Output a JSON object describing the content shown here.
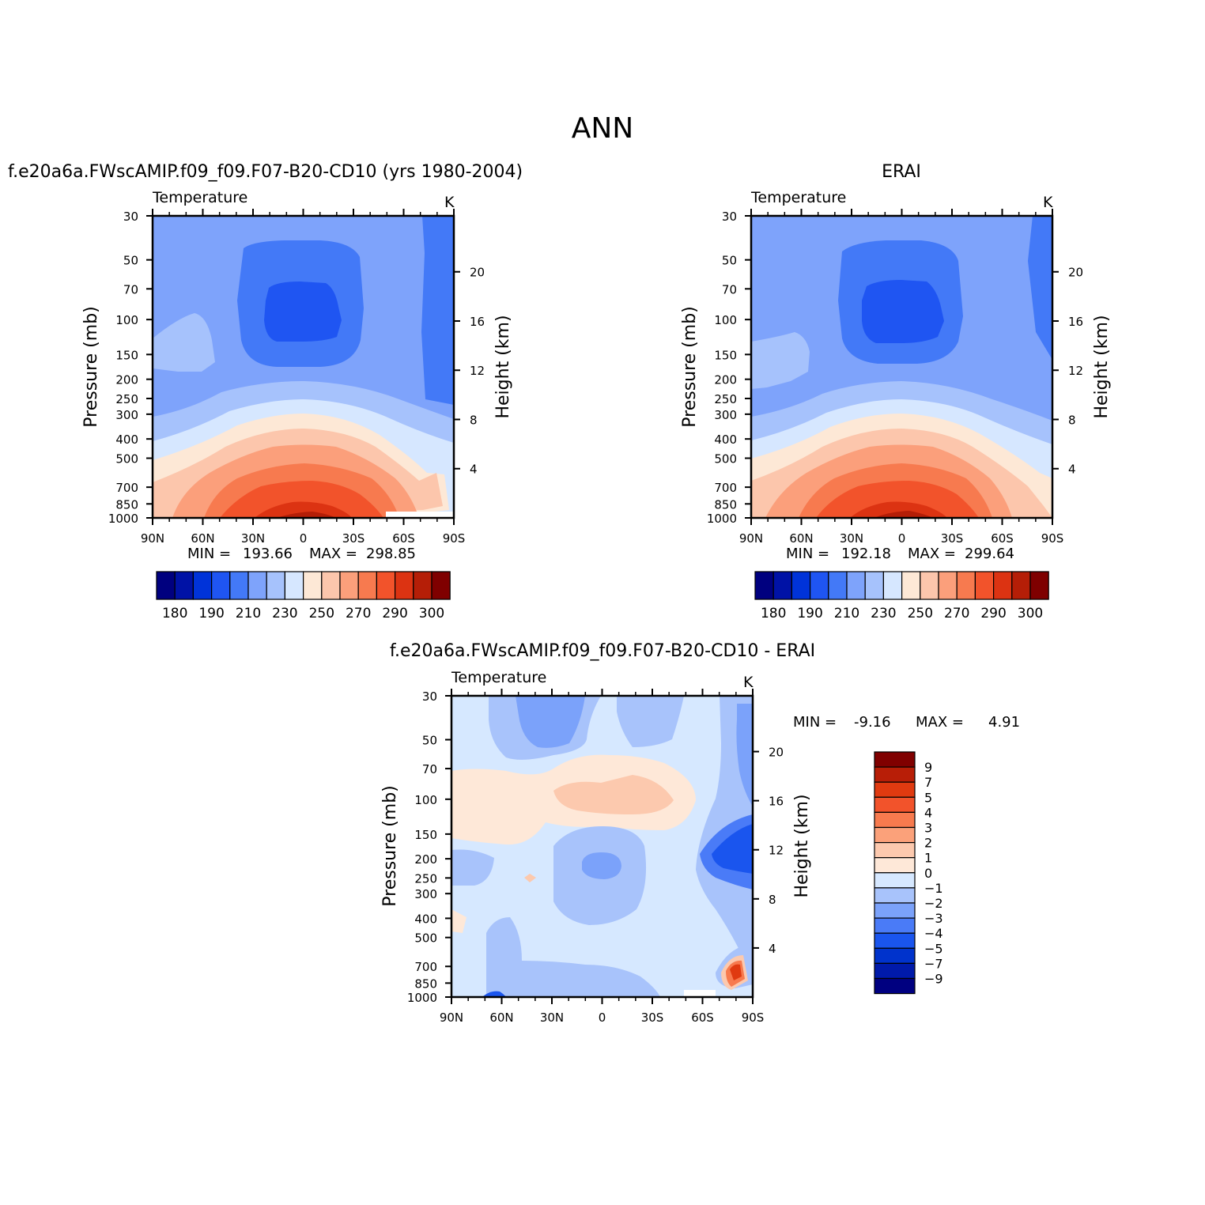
{
  "figure": {
    "title": "ANN",
    "colors": {
      "temperature": [
        "#00007f",
        "#0012a6",
        "#0033d9",
        "#1f55f2",
        "#4379f7",
        "#7ea3fb",
        "#a6c2fc",
        "#d6e7ff",
        "#fde8d6",
        "#fcc6ac",
        "#fb9f7b",
        "#f77a4f",
        "#f2532b",
        "#dc3312",
        "#b51e07",
        "#7f0000"
      ],
      "difference": [
        "#000080",
        "#001aaa",
        "#0033cc",
        "#1a55ee",
        "#4a7bf7",
        "#7ba2fa",
        "#a8c3fb",
        "#d6e8ff",
        "#fee8d8",
        "#fcc9ae",
        "#fba17a",
        "#f77a4e",
        "#f2532b",
        "#e03a10",
        "#b81e07",
        "#800000"
      ]
    }
  },
  "chart_data": [
    {
      "type": "contour",
      "title": "f.e20a6a.FWscAMIP.f09_f09.F07-B20-CD10 (yrs 1980-2004)",
      "left_label": "Temperature",
      "right_label": "K",
      "ylabel": "Pressure  (mb)",
      "ylabel_right": "Height  (km)",
      "x_ticks": [
        "90N",
        "60N",
        "30N",
        "0",
        "30S",
        "60S",
        "90S"
      ],
      "x_range": [
        90,
        -90
      ],
      "y_ticks": [
        "30",
        "50",
        "70",
        "100",
        "150",
        "200",
        "250",
        "300",
        "400",
        "500",
        "700",
        "850",
        "1000"
      ],
      "y_range_mb": [
        30,
        1000
      ],
      "height_ticks_km": [
        "20",
        "16",
        "12",
        "8",
        "4"
      ],
      "min_label": "MIN =",
      "min_value": "193.66",
      "max_label": "MAX =",
      "max_value": "298.85",
      "colorbar_labels": [
        "180",
        "190",
        "210",
        "230",
        "250",
        "270",
        "290",
        "300"
      ]
    },
    {
      "type": "contour",
      "title": "ERAI",
      "left_label": "Temperature",
      "right_label": "K",
      "ylabel": "Pressure  (mb)",
      "ylabel_right": "Height  (km)",
      "x_ticks": [
        "90N",
        "60N",
        "30N",
        "0",
        "30S",
        "60S",
        "90S"
      ],
      "x_range": [
        90,
        -90
      ],
      "y_ticks": [
        "30",
        "50",
        "70",
        "100",
        "150",
        "200",
        "250",
        "300",
        "400",
        "500",
        "700",
        "850",
        "1000"
      ],
      "y_range_mb": [
        30,
        1000
      ],
      "height_ticks_km": [
        "20",
        "16",
        "12",
        "8",
        "4"
      ],
      "min_label": "MIN =",
      "min_value": "192.18",
      "max_label": "MAX =",
      "max_value": "299.64",
      "colorbar_labels": [
        "180",
        "190",
        "210",
        "230",
        "250",
        "270",
        "290",
        "300"
      ]
    },
    {
      "type": "contour",
      "title": "f.e20a6a.FWscAMIP.f09_f09.F07-B20-CD10 - ERAI",
      "left_label": "Temperature",
      "right_label": "K",
      "ylabel": "Pressure  (mb)",
      "ylabel_right": "Height  (km)",
      "x_ticks": [
        "90N",
        "60N",
        "30N",
        "0",
        "30S",
        "60S",
        "90S"
      ],
      "x_range": [
        90,
        -90
      ],
      "y_ticks": [
        "30",
        "50",
        "70",
        "100",
        "150",
        "200",
        "250",
        "300",
        "400",
        "500",
        "700",
        "850",
        "1000"
      ],
      "y_range_mb": [
        30,
        1000
      ],
      "height_ticks_km": [
        "20",
        "16",
        "12",
        "8",
        "4"
      ],
      "min_label": "MIN =",
      "min_value": "-9.16",
      "max_label": "MAX =",
      "max_value": "4.91",
      "colorbar_labels": [
        "9",
        "7",
        "5",
        "4",
        "3",
        "2",
        "1",
        "0",
        "-1",
        "-2",
        "-3",
        "-4",
        "-5",
        "-7",
        "-9"
      ]
    }
  ]
}
